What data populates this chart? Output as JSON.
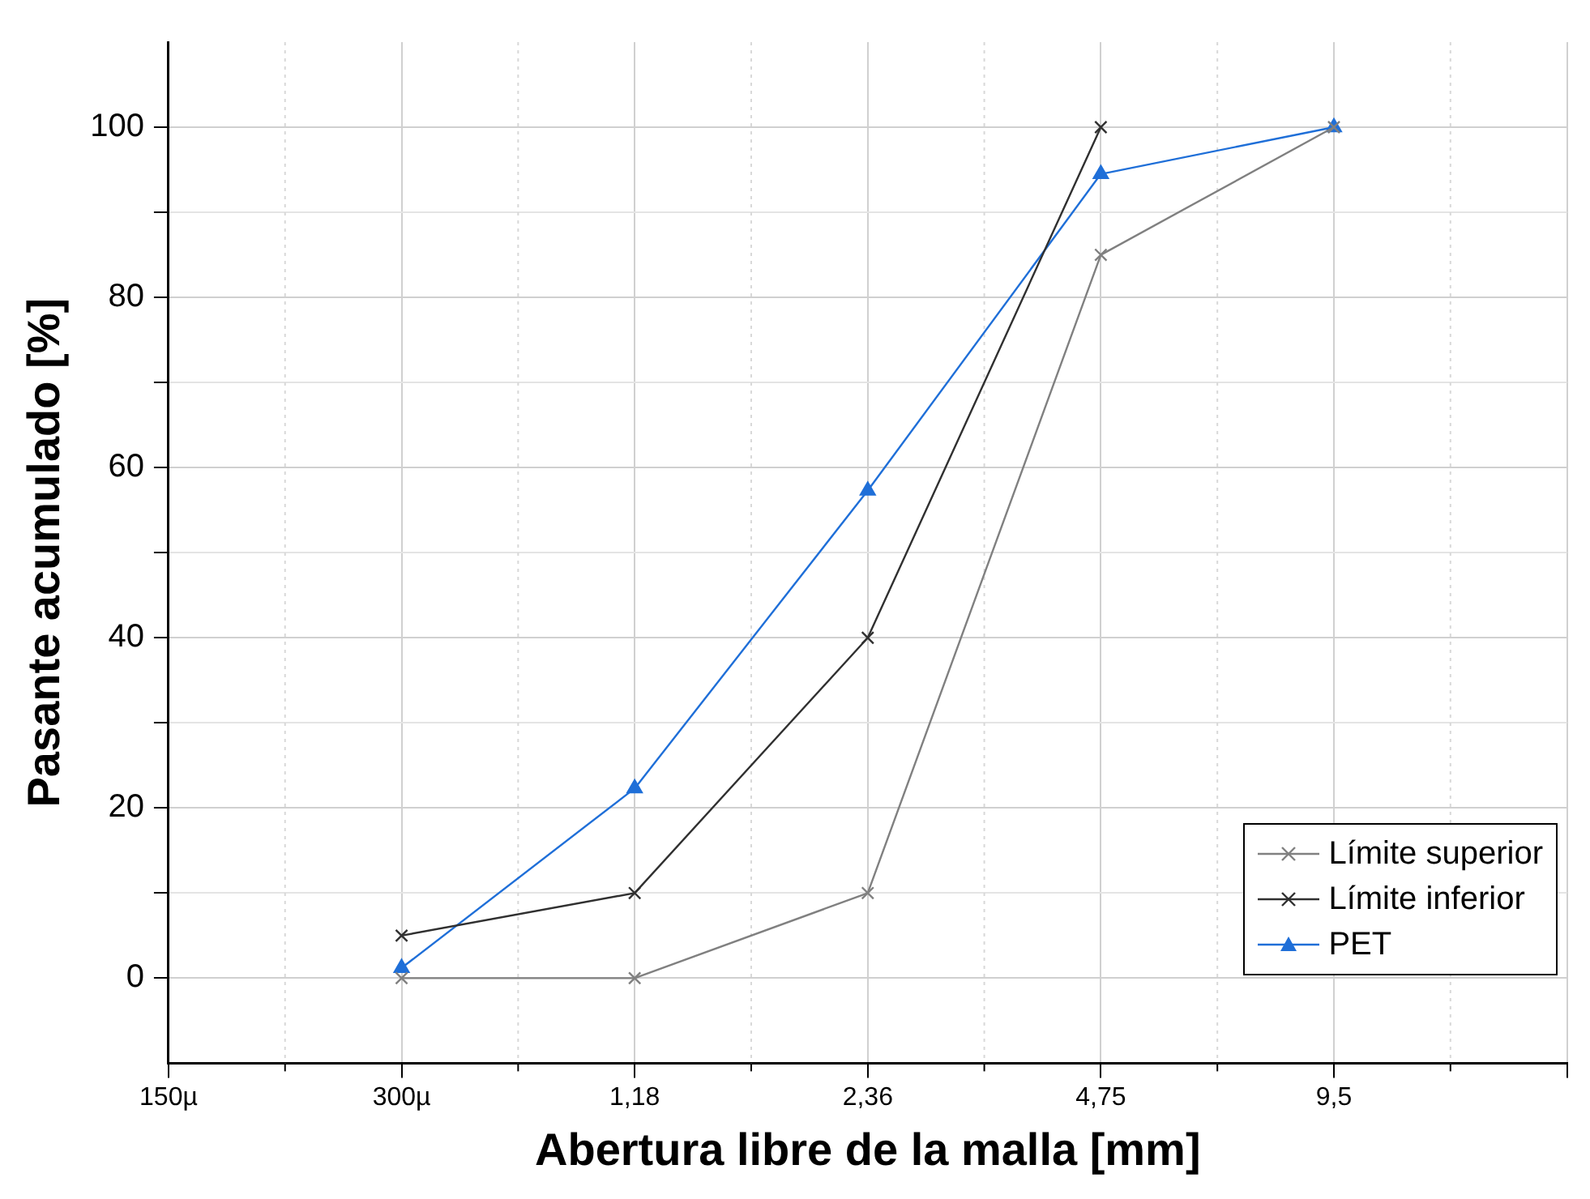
{
  "chart_data": {
    "type": "line",
    "xlabel": "Abertura libre de la malla [mm]",
    "ylabel": "Pasante acumulado [%]",
    "categories": [
      "150µ",
      "300µ",
      "1,18",
      "2,36",
      "4,75",
      "9,5",
      null
    ],
    "series": [
      {
        "name": "Límite superior",
        "color": "#808080",
        "marker": "cross",
        "values": [
          null,
          0,
          0,
          10,
          85,
          100,
          null
        ]
      },
      {
        "name": "Límite inferior",
        "color": "#303030",
        "marker": "cross",
        "values": [
          null,
          5,
          10,
          40,
          100,
          null,
          null
        ]
      },
      {
        "name": "PET",
        "color": "#1f6fd8",
        "marker": "triangle",
        "values": [
          null,
          1.2,
          22.3,
          57.3,
          94.5,
          100,
          null
        ]
      }
    ],
    "ylim": [
      -10,
      110
    ],
    "yticks": [
      0,
      {
        "value": 10,
        "label": null
      },
      20,
      {
        "value": 30,
        "label": null
      },
      40,
      {
        "value": 50,
        "label": null
      },
      60,
      {
        "value": 70,
        "label": null
      },
      80,
      {
        "value": 90,
        "label": null
      },
      100
    ],
    "grid": true,
    "legend": "bottom right",
    "line_style": "solid"
  }
}
